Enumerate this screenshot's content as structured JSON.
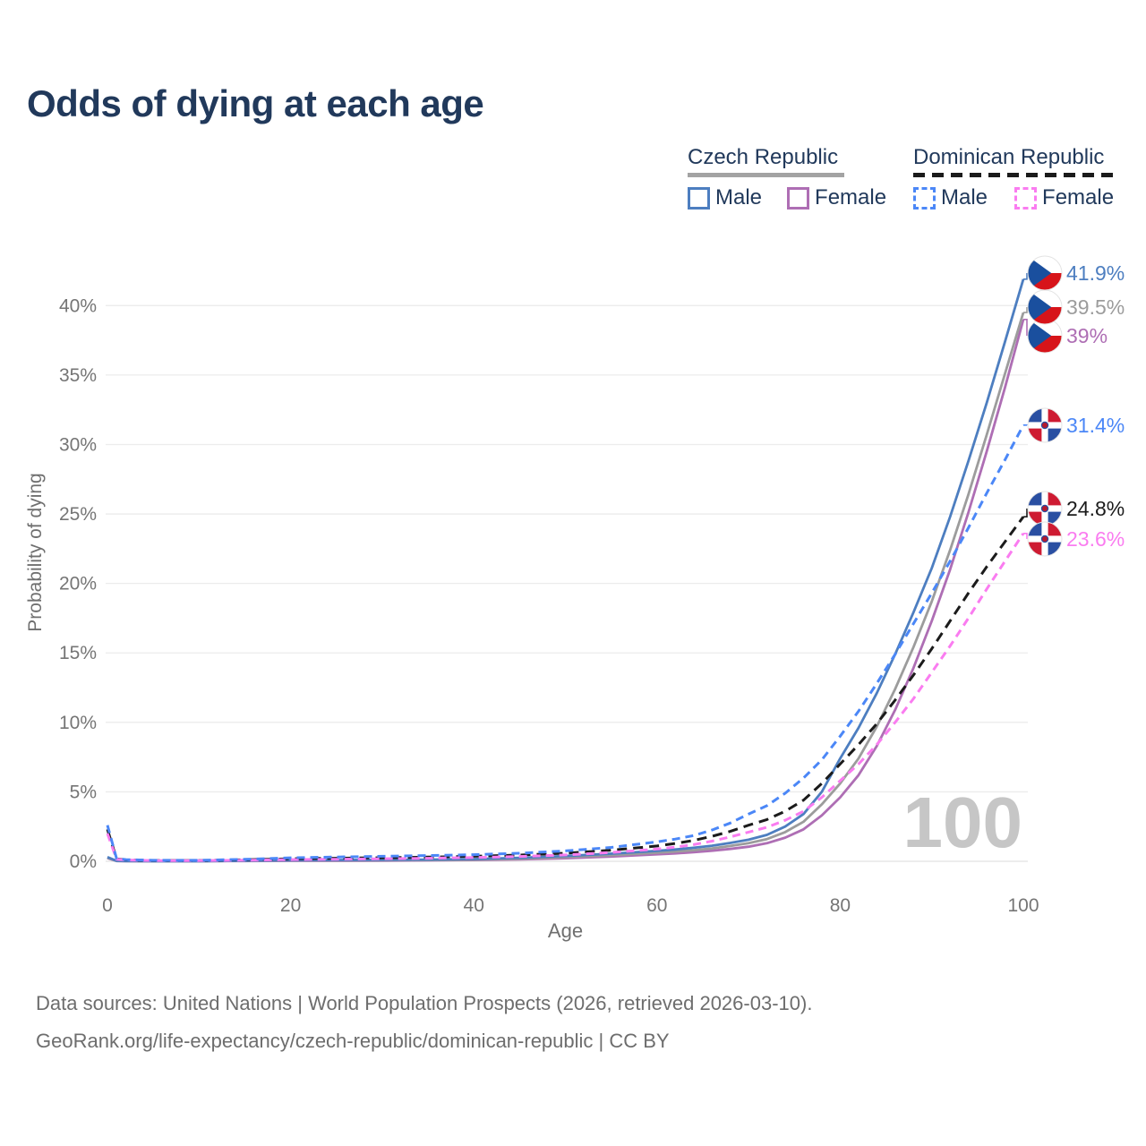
{
  "title": "Odds of dying at each age",
  "legend": {
    "groups": [
      {
        "label": "Czech Republic",
        "line_style": "solid",
        "line_color": "#a3a3a3",
        "items": [
          {
            "label": "Male",
            "color": "#4d7ec0",
            "style": "solid"
          },
          {
            "label": "Female",
            "color": "#ae6eb4",
            "style": "solid"
          }
        ]
      },
      {
        "label": "Dominican Republic",
        "line_style": "dashed",
        "line_color": "#1b1b1b",
        "items": [
          {
            "label": "Male",
            "color": "#4b87f7",
            "style": "dashed"
          },
          {
            "label": "Female",
            "color": "#fa7cf0",
            "style": "dashed"
          }
        ]
      }
    ]
  },
  "watermark": "100",
  "footer": {
    "line1": "Data sources: United Nations | World Population Prospects (2026, retrieved 2026-03-10).",
    "line2": "GeoRank.org/life-expectancy/czech-republic/dominican-republic | CC BY"
  },
  "chart_data": {
    "type": "line",
    "title": "Odds of dying at each age",
    "xlabel": "Age",
    "ylabel": "Probability of dying",
    "xlim": [
      0,
      100
    ],
    "ylim": [
      0,
      43
    ],
    "grid": true,
    "legend_position": "top-right",
    "xticks": [
      {
        "value": 0,
        "label": "0"
      },
      {
        "value": 20,
        "label": "20"
      },
      {
        "value": 40,
        "label": "40"
      },
      {
        "value": 60,
        "label": "60"
      },
      {
        "value": 80,
        "label": "80"
      },
      {
        "value": 100,
        "label": "100"
      }
    ],
    "yticks": [
      {
        "value": 0,
        "label": "0%"
      },
      {
        "value": 5,
        "label": "5%"
      },
      {
        "value": 10,
        "label": "10%"
      },
      {
        "value": 15,
        "label": "15%"
      },
      {
        "value": 20,
        "label": "20%"
      },
      {
        "value": 25,
        "label": "25%"
      },
      {
        "value": 30,
        "label": "30%"
      },
      {
        "value": 35,
        "label": "35%"
      },
      {
        "value": 40,
        "label": "40%"
      }
    ],
    "ages": [
      0,
      1,
      2,
      5,
      10,
      15,
      20,
      25,
      30,
      35,
      40,
      45,
      50,
      55,
      60,
      62,
      64,
      66,
      68,
      70,
      72,
      74,
      76,
      78,
      80,
      82,
      84,
      86,
      88,
      90,
      92,
      94,
      96,
      98,
      100
    ],
    "series": [
      {
        "id": "czech-female",
        "country": "Czech Republic",
        "sex": "Female",
        "style": "solid",
        "color": "#ae6eb4",
        "flag": "cz",
        "end_label": "39%",
        "end_value": 39.0,
        "values": [
          0.23,
          0.02,
          0.015,
          0.01,
          0.01,
          0.02,
          0.03,
          0.035,
          0.045,
          0.065,
          0.09,
          0.14,
          0.22,
          0.34,
          0.5,
          0.57,
          0.65,
          0.76,
          0.89,
          1.05,
          1.3,
          1.7,
          2.3,
          3.3,
          4.6,
          6.2,
          8.3,
          10.9,
          13.9,
          17.3,
          21.0,
          25.1,
          29.5,
          34.1,
          39.0
        ]
      },
      {
        "id": "czech-both",
        "country": "Czech Republic",
        "sex": "Both sexes",
        "style": "solid",
        "color": "#9c9c9c",
        "flag": "cz",
        "end_label": "39.5%",
        "end_value": 39.5,
        "values": [
          0.26,
          0.025,
          0.018,
          0.012,
          0.012,
          0.03,
          0.06,
          0.065,
          0.075,
          0.09,
          0.12,
          0.19,
          0.3,
          0.44,
          0.62,
          0.7,
          0.8,
          0.93,
          1.1,
          1.3,
          1.6,
          2.1,
          2.85,
          4.1,
          5.6,
          7.4,
          9.7,
          12.4,
          15.4,
          18.7,
          22.4,
          26.4,
          30.7,
          35.1,
          39.5
        ]
      },
      {
        "id": "czech-male",
        "country": "Czech Republic",
        "sex": "Male",
        "style": "solid",
        "color": "#4d7ec0",
        "flag": "cz",
        "end_label": "41.9%",
        "end_value": 41.9,
        "values": [
          0.3,
          0.03,
          0.02,
          0.015,
          0.015,
          0.04,
          0.08,
          0.09,
          0.1,
          0.12,
          0.16,
          0.25,
          0.38,
          0.55,
          0.75,
          0.85,
          0.97,
          1.12,
          1.32,
          1.55,
          1.9,
          2.5,
          3.4,
          5.0,
          7.4,
          9.6,
          12.1,
          14.9,
          17.9,
          21.1,
          24.8,
          28.8,
          33.0,
          37.4,
          41.9
        ]
      },
      {
        "id": "dominican-both",
        "country": "Dominican Republic",
        "sex": "Both sexes",
        "style": "dashed",
        "color": "#1b1b1b",
        "flag": "do",
        "end_label": "24.8%",
        "end_value": 24.8,
        "values": [
          2.3,
          0.17,
          0.1,
          0.06,
          0.06,
          0.11,
          0.18,
          0.22,
          0.26,
          0.3,
          0.36,
          0.45,
          0.58,
          0.8,
          1.1,
          1.28,
          1.5,
          1.8,
          2.15,
          2.6,
          3.0,
          3.6,
          4.4,
          5.6,
          7.0,
          8.4,
          9.9,
          11.6,
          13.4,
          15.3,
          17.3,
          19.3,
          21.2,
          23.0,
          24.8
        ]
      },
      {
        "id": "dominican-female",
        "country": "Dominican Republic",
        "sex": "Female",
        "style": "dashed",
        "color": "#fa7cf0",
        "flag": "do",
        "end_label": "23.6%",
        "end_value": 23.6,
        "values": [
          2.0,
          0.15,
          0.09,
          0.05,
          0.05,
          0.08,
          0.12,
          0.15,
          0.18,
          0.22,
          0.27,
          0.35,
          0.46,
          0.63,
          0.88,
          1.02,
          1.2,
          1.45,
          1.75,
          2.1,
          2.45,
          2.95,
          3.6,
          4.6,
          5.8,
          7.0,
          8.4,
          10.0,
          11.7,
          13.6,
          15.5,
          17.5,
          19.6,
          21.6,
          23.6
        ]
      },
      {
        "id": "dominican-male",
        "country": "Dominican Republic",
        "sex": "Male",
        "style": "dashed",
        "color": "#4b87f7",
        "flag": "do",
        "end_label": "31.4%",
        "end_value": 31.4,
        "values": [
          2.6,
          0.2,
          0.12,
          0.07,
          0.07,
          0.14,
          0.25,
          0.31,
          0.36,
          0.41,
          0.48,
          0.58,
          0.75,
          1.0,
          1.4,
          1.6,
          1.85,
          2.25,
          2.75,
          3.4,
          4.0,
          4.9,
          6.0,
          7.3,
          9.0,
          10.8,
          12.8,
          14.9,
          17.1,
          19.3,
          21.6,
          24.0,
          26.5,
          28.9,
          31.4
        ]
      }
    ]
  }
}
